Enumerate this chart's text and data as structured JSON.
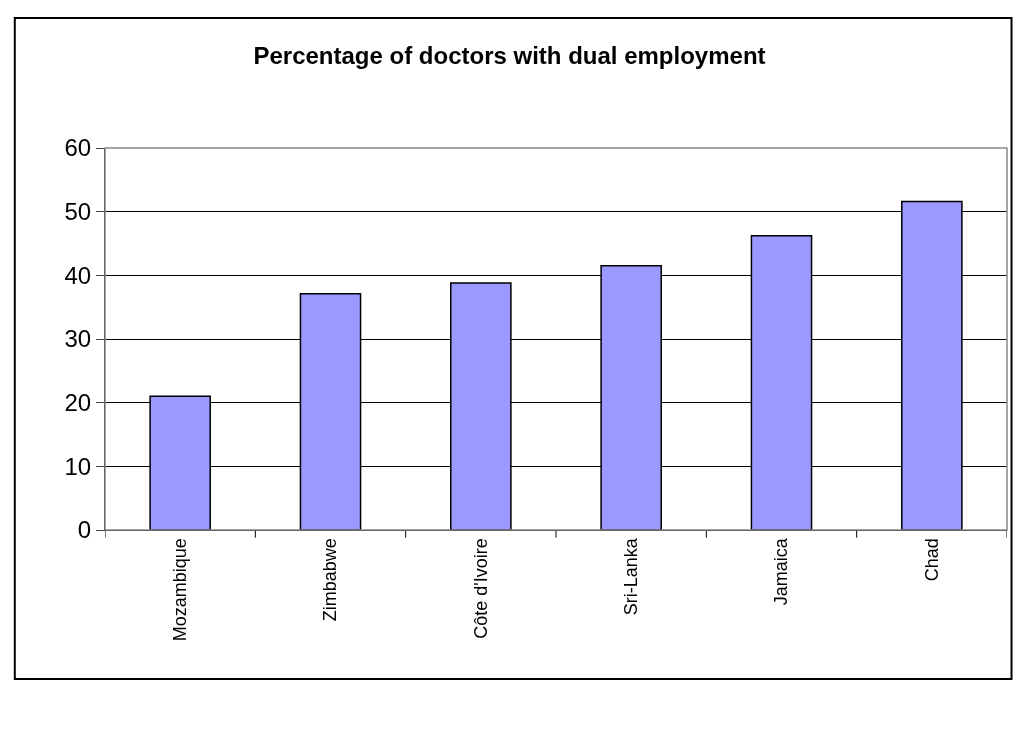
{
  "chart_data": {
    "type": "bar",
    "title": "Percentage of doctors with dual employment",
    "categories": [
      "Mozambique",
      "Zimbabwe",
      "Côte d'Ivoire",
      "Sri-Lanka",
      "Jamaica",
      "Chad"
    ],
    "values": [
      21.0,
      37.1,
      38.8,
      41.5,
      46.2,
      51.6
    ],
    "color": "#9999ff",
    "ylim": [
      0,
      60
    ],
    "yticks": [
      0,
      10,
      20,
      30,
      40,
      50,
      60
    ],
    "grid": "y",
    "legend": false
  }
}
